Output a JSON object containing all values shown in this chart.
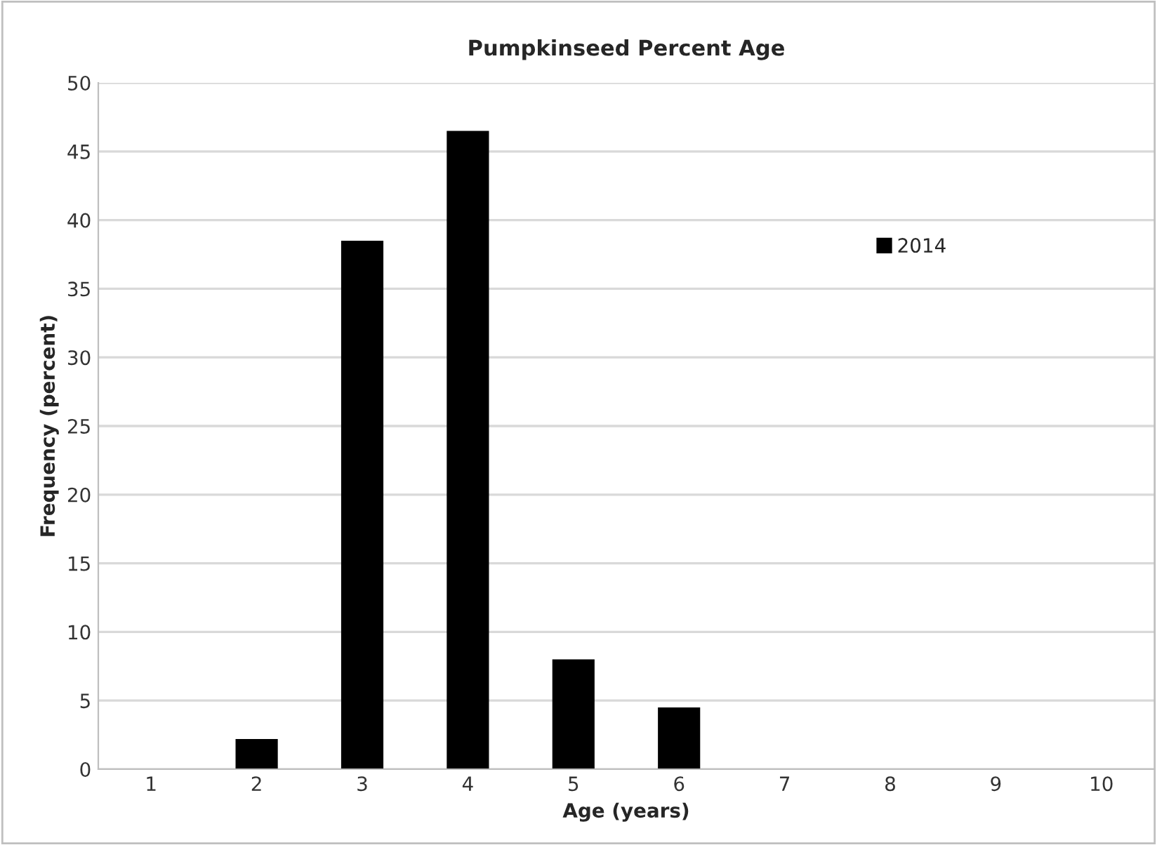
{
  "chart_data": {
    "type": "bar",
    "title": "Pumpkinseed Percent Age",
    "xlabel": "Age (years)",
    "ylabel": "Frequency (percent)",
    "categories": [
      "1",
      "2",
      "3",
      "4",
      "5",
      "6",
      "7",
      "8",
      "9",
      "10"
    ],
    "series": [
      {
        "name": "2014",
        "color": "#000000",
        "values": [
          0,
          2.2,
          38.5,
          46.5,
          8.0,
          4.5,
          0,
          0,
          0,
          0
        ]
      }
    ],
    "ylim": [
      0,
      50
    ],
    "yticks": [
      0,
      5,
      10,
      15,
      20,
      25,
      30,
      35,
      40,
      45,
      50
    ],
    "grid": "y",
    "legend": "top right"
  }
}
